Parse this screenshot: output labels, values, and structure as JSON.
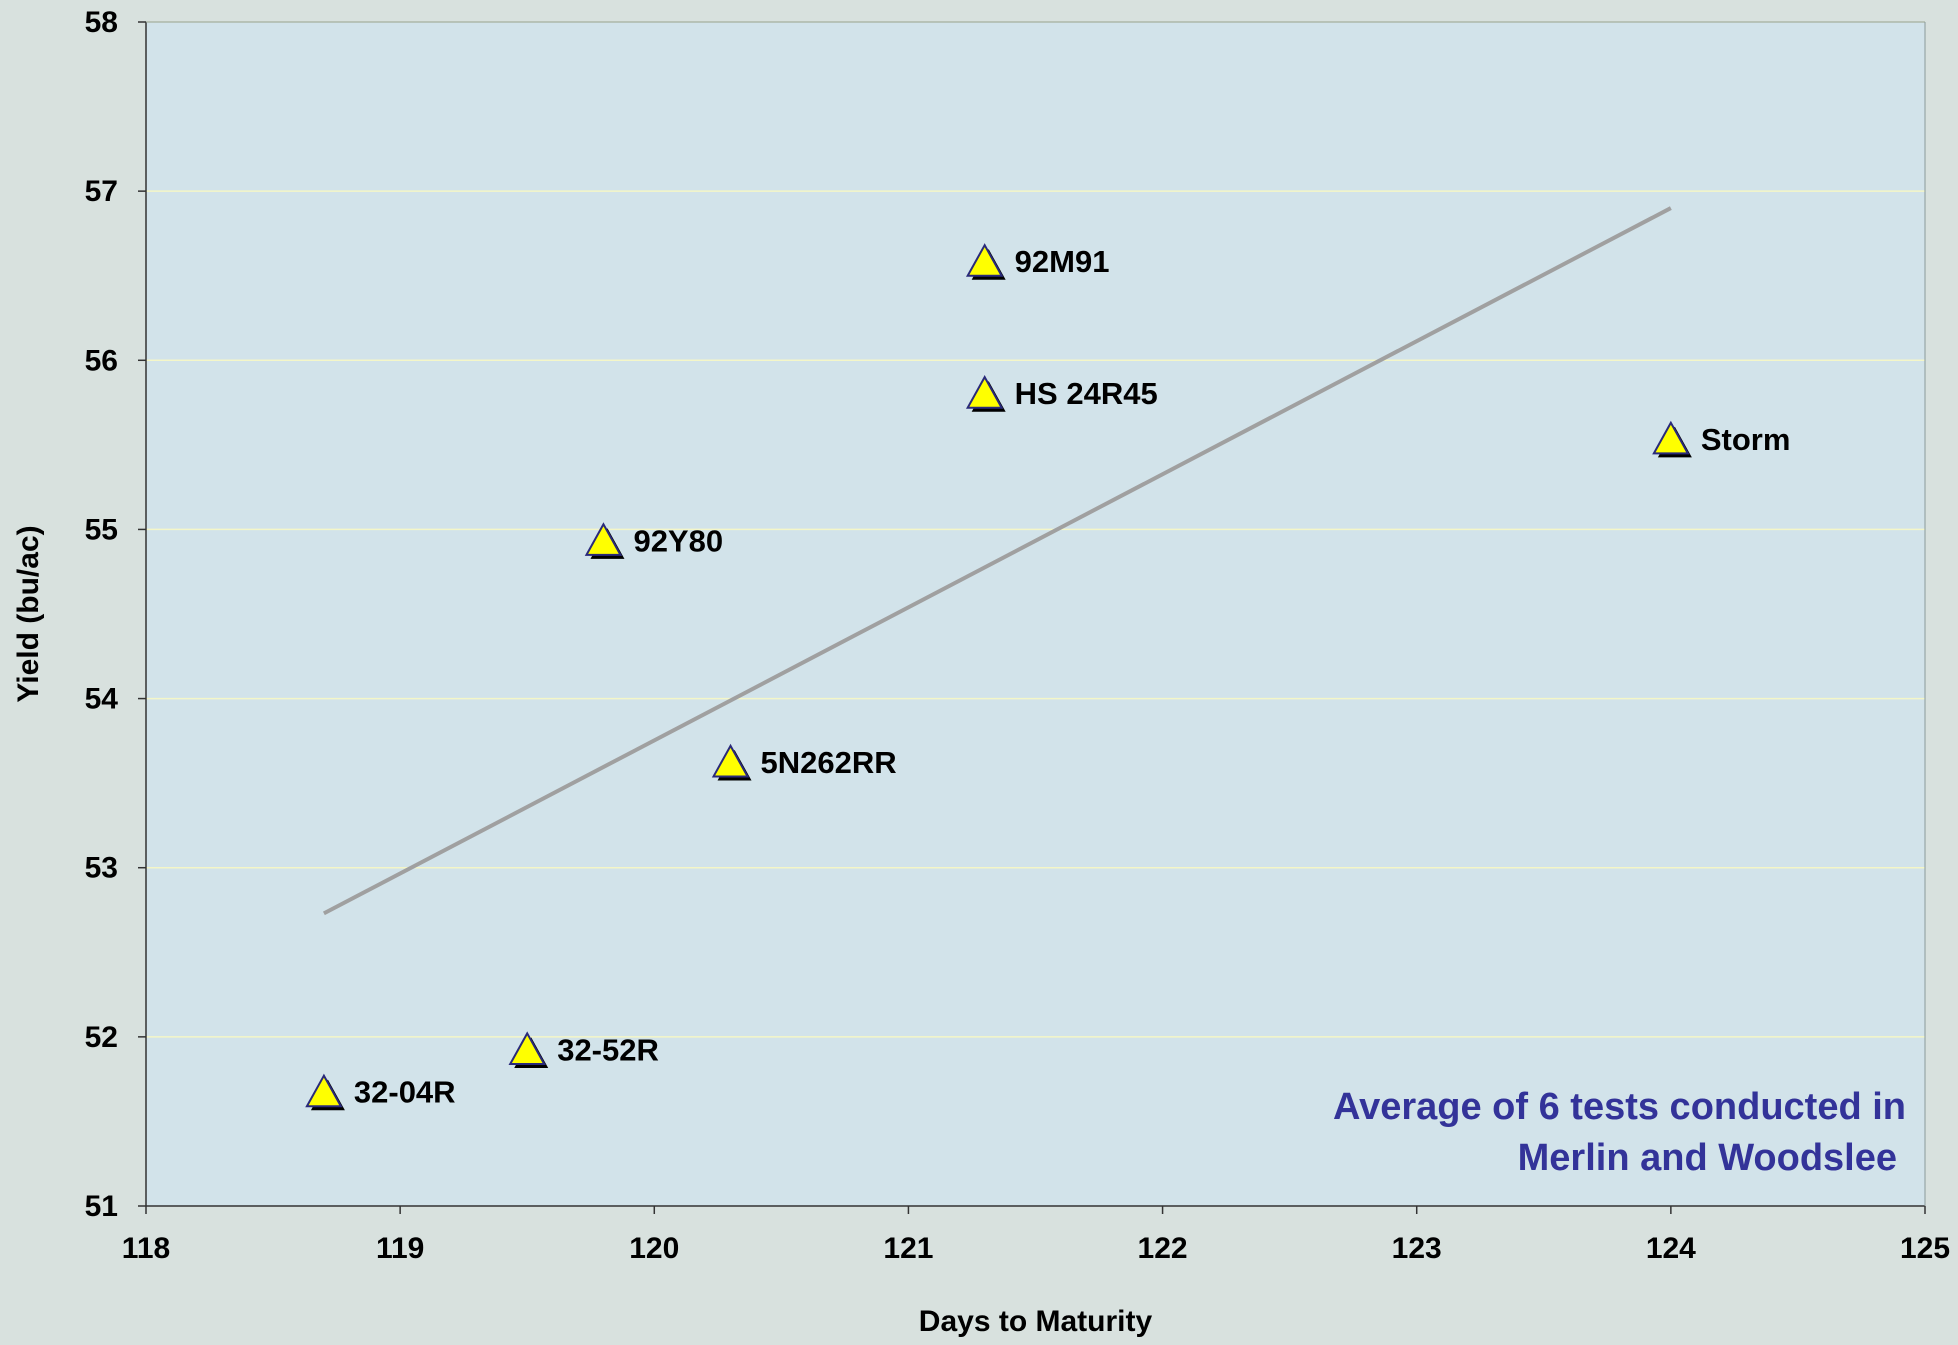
{
  "chart_data": {
    "type": "scatter",
    "title": "",
    "xlabel": "Days to Maturity",
    "ylabel": "Yield (bu/ac)",
    "xlim": [
      118,
      125
    ],
    "ylim": [
      51,
      58
    ],
    "x_ticks": [
      "118",
      "119",
      "120",
      "121",
      "122",
      "123",
      "124",
      "125"
    ],
    "y_ticks": [
      "51",
      "52",
      "53",
      "54",
      "55",
      "56",
      "57",
      "58"
    ],
    "grid": "horizontal",
    "points": [
      {
        "label": "32-04R",
        "x": 118.7,
        "y": 51.67
      },
      {
        "label": "32-52R",
        "x": 119.5,
        "y": 51.92
      },
      {
        "label": "92Y80",
        "x": 119.8,
        "y": 54.93
      },
      {
        "label": "5N262RR",
        "x": 120.3,
        "y": 53.62
      },
      {
        "label": "92M91",
        "x": 121.3,
        "y": 56.58
      },
      {
        "label": "HS 24R45",
        "x": 121.3,
        "y": 55.8
      },
      {
        "label": "Storm",
        "x": 124.0,
        "y": 55.53
      }
    ],
    "trendline": {
      "x1": 118.7,
      "y1": 52.73,
      "x2": 124.0,
      "y2": 56.9
    },
    "annotation": {
      "lines": [
        "Average of 6 tests conducted in",
        "Merlin and Woodslee"
      ]
    },
    "colors": {
      "plot_background": "#d2e3ea",
      "page_background": "#d8e1de",
      "gridline": "#f4f6c8",
      "marker_fill": "#ffff00",
      "marker_edge": "#2a2a7a",
      "marker_shadow": "#000000",
      "trendline": "#a0a0a0",
      "annotation": "#333399"
    }
  }
}
